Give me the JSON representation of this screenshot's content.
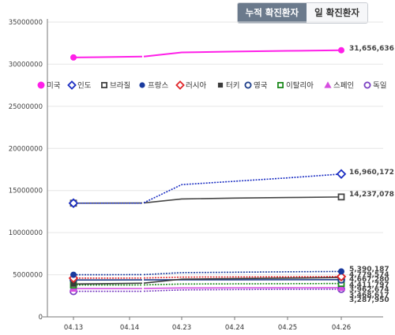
{
  "tabs": [
    {
      "label": "누적 확진환자",
      "active": true
    },
    {
      "label": "일 확진환자",
      "active": false
    }
  ],
  "chart_data": {
    "type": "line",
    "title": "",
    "xlabel": "",
    "ylabel": "",
    "categories": [
      "04.13",
      "04.14",
      "04.23",
      "04.24",
      "04.25",
      "04.26"
    ],
    "ylim": [
      0,
      35000000
    ],
    "yticks": [
      0,
      5000000,
      10000000,
      15000000,
      20000000,
      25000000,
      30000000,
      35000000
    ],
    "ytick_labels": [
      "0",
      "5000000",
      "10000000",
      "15000000",
      "20000000",
      "25000000",
      "30000000",
      "35000000"
    ],
    "grid": "horizontal",
    "legend_position": "top",
    "series": [
      {
        "name": "미국",
        "marker": "filled-circle",
        "color": "#ff1fe8",
        "line": "solid",
        "values": [
          30800000,
          30900000,
          31400000,
          31500000,
          31580000,
          31656636
        ],
        "end_label": "31,656,636"
      },
      {
        "name": "인도",
        "marker": "open-diamond",
        "color": "#1a2dc2",
        "line": "dotted",
        "values": [
          13500000,
          13500000,
          15700000,
          16100000,
          16500000,
          16960172
        ],
        "end_label": "16,960,172"
      },
      {
        "name": "브라질",
        "marker": "open-square",
        "color": "#444444",
        "line": "solid",
        "values": [
          13500000,
          13520000,
          14000000,
          14100000,
          14170000,
          14237078
        ],
        "end_label": "14,237,078"
      },
      {
        "name": "프랑스",
        "marker": "filled-circle",
        "color": "#1a3a9e",
        "line": "dotted",
        "values": [
          5000000,
          5010000,
          5250000,
          5300000,
          5350000,
          5390187
        ],
        "end_label": "5,390,187"
      },
      {
        "name": "러시아",
        "marker": "open-diamond",
        "color": "#e0262a",
        "line": "dotted",
        "values": [
          4600000,
          4610000,
          4720000,
          4740000,
          4760000,
          4779574
        ],
        "end_label": "4,779,574"
      },
      {
        "name": "터키",
        "marker": "filled-square",
        "color": "#3a3a3a",
        "line": "solid",
        "values": [
          3900000,
          4000000,
          4480000,
          4540000,
          4600000,
          4667280
        ],
        "end_label": "4,667,280"
      },
      {
        "name": "영국",
        "marker": "open-circle",
        "color": "#1c3d8a",
        "line": "solid",
        "values": [
          4380000,
          4390000,
          4400000,
          4405000,
          4410000,
          4411797
        ],
        "end_label": "4,411,797"
      },
      {
        "name": "이탈리아",
        "marker": "open-square",
        "color": "#1f8a1f",
        "line": "dotted",
        "values": [
          3780000,
          3790000,
          3900000,
          3920000,
          3940000,
          3962674
        ],
        "end_label": "3,962,674"
      },
      {
        "name": "스페인",
        "marker": "filled-triangle",
        "color": "#d64ee0",
        "line": "solid",
        "values": [
          3360000,
          3370000,
          3430000,
          3450000,
          3460000,
          3468617
        ],
        "end_label": "3,468,617"
      },
      {
        "name": "독일",
        "marker": "open-circle",
        "color": "#7a3fc2",
        "line": "dotted",
        "values": [
          3030000,
          3040000,
          3200000,
          3240000,
          3270000,
          3287950
        ],
        "end_label": "3,287,950"
      }
    ]
  }
}
